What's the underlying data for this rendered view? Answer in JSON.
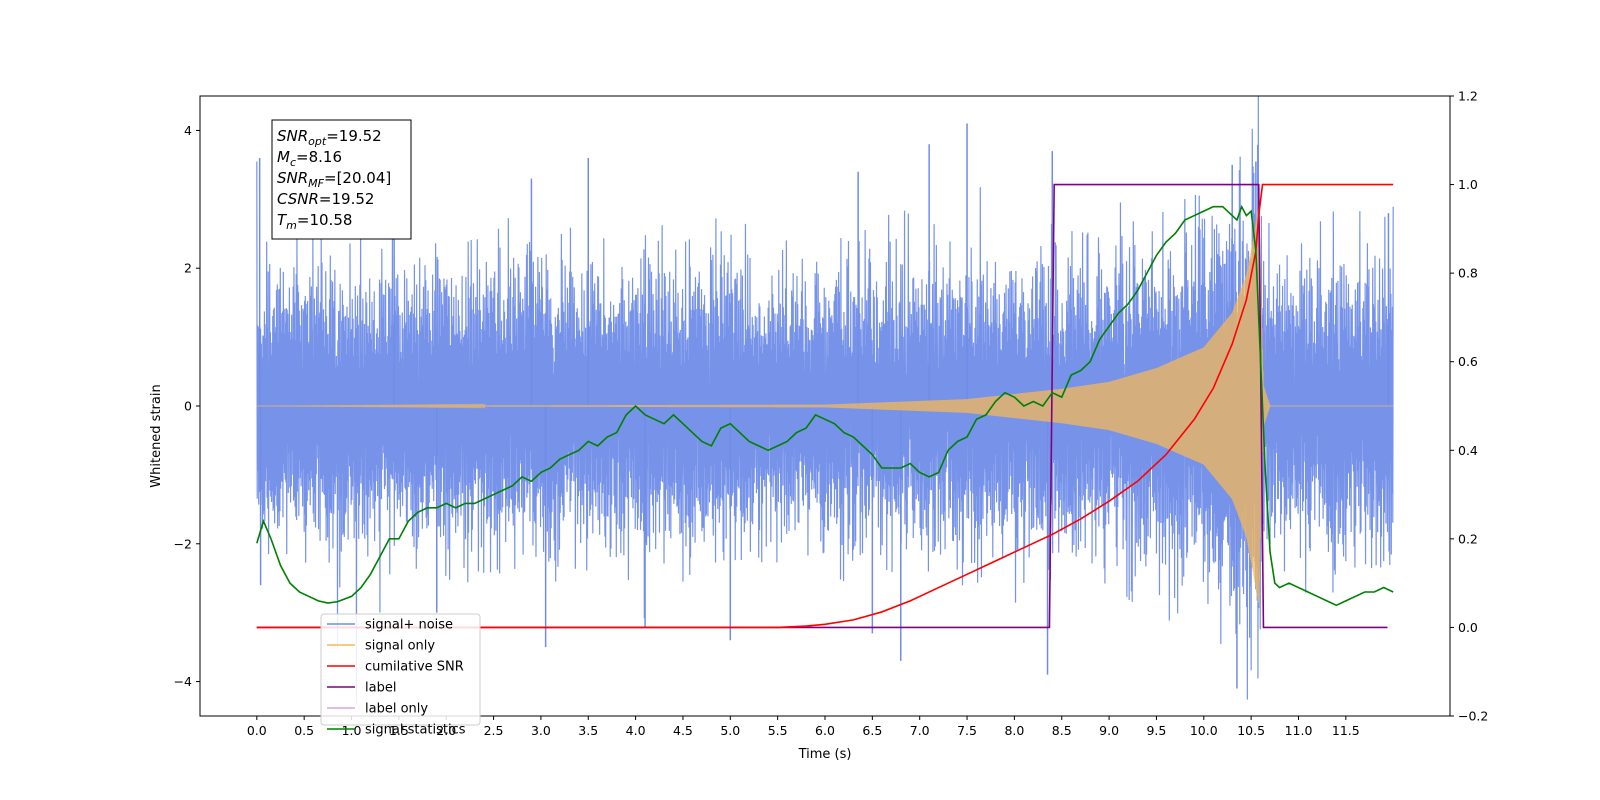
{
  "chart_data": {
    "type": "line",
    "xlabel": "Time (s)",
    "ylabel": "Whitened strain",
    "xlim": [
      -0.6,
      12.6
    ],
    "ylim": [
      -4.5,
      4.5
    ],
    "y2lim": [
      -0.2,
      1.2
    ],
    "x_ticks": [
      0.0,
      0.5,
      1.0,
      1.5,
      2.0,
      2.5,
      3.0,
      3.5,
      4.0,
      4.5,
      5.0,
      5.5,
      6.0,
      6.5,
      7.0,
      7.5,
      8.0,
      8.5,
      9.0,
      9.5,
      10.0,
      10.5,
      11.0,
      11.5
    ],
    "x_tick_labels": [
      "0.0",
      "0.5",
      "1.0",
      "1.5",
      "2.0",
      "2.5",
      "3.0",
      "3.5",
      "4.0",
      "4.5",
      "5.0",
      "5.5",
      "6.0",
      "6.5",
      "7.0",
      "7.5",
      "8.0",
      "8.5",
      "9.0",
      "9.5",
      "10.0",
      "10.5",
      "11.0",
      "11.5"
    ],
    "y_ticks": [
      -4,
      -2,
      0,
      2,
      4
    ],
    "y_tick_labels": [
      "−4",
      "−2",
      "0",
      "2",
      "4"
    ],
    "y2_ticks": [
      -0.2,
      0.0,
      0.2,
      0.4,
      0.6,
      0.8,
      1.0,
      1.2
    ],
    "y2_tick_labels": [
      "−0.2",
      "0.0",
      "0.2",
      "0.4",
      "0.6",
      "0.8",
      "1.0",
      "1.2"
    ],
    "annotation": {
      "lines": [
        {
          "sym": "SNR",
          "sub": "opt",
          "value": "=19.52"
        },
        {
          "sym": "M",
          "sub": "c",
          "value": "=8.16"
        },
        {
          "sym": "SNR",
          "sub": "MF",
          "value": "=[20.04]"
        },
        {
          "sym": "CSNR",
          "sub": "",
          "value": "=19.52"
        },
        {
          "sym": "T",
          "sub": "m",
          "value": "=10.58"
        }
      ]
    },
    "legend_position": "lower-left",
    "series": [
      {
        "name": "signal+ noise",
        "axis": "left",
        "color": "#6f8de8",
        "x_range": [
          0.0,
          12.0
        ],
        "envelope_max": [
          [
            0.0,
            1.5
          ],
          [
            8.0,
            1.5
          ],
          [
            9.0,
            1.6
          ],
          [
            10.0,
            1.9
          ],
          [
            10.5,
            2.6
          ],
          [
            10.58,
            3.0
          ],
          [
            10.65,
            1.5
          ],
          [
            12.0,
            1.5
          ]
        ],
        "peaks": [
          {
            "x": 0.03,
            "y": 3.6
          },
          {
            "x": 0.04,
            "y": -2.6
          },
          {
            "x": 1.45,
            "y": 3.4
          },
          {
            "x": 1.9,
            "y": -3.0
          },
          {
            "x": 2.9,
            "y": 3.3
          },
          {
            "x": 3.05,
            "y": -3.5
          },
          {
            "x": 3.5,
            "y": 3.6
          },
          {
            "x": 4.1,
            "y": -3.2
          },
          {
            "x": 5.0,
            "y": -3.4
          },
          {
            "x": 6.35,
            "y": 3.4
          },
          {
            "x": 6.5,
            "y": -3.3
          },
          {
            "x": 6.8,
            "y": -3.7
          },
          {
            "x": 7.1,
            "y": 3.8
          },
          {
            "x": 7.5,
            "y": 4.1
          },
          {
            "x": 8.35,
            "y": -3.9
          },
          {
            "x": 8.4,
            "y": 3.7
          },
          {
            "x": 10.3,
            "y": 3.5
          },
          {
            "x": 10.35,
            "y": -4.1
          },
          {
            "x": 10.55,
            "y": 3.55
          },
          {
            "x": 11.95,
            "y": 2.8
          }
        ]
      },
      {
        "name": "signal only",
        "axis": "left",
        "color": "#f5b75a",
        "x_range": [
          0.0,
          12.0
        ],
        "envelope": [
          [
            0.0,
            0.0
          ],
          [
            6.0,
            0.02
          ],
          [
            7.5,
            0.1
          ],
          [
            8.5,
            0.25
          ],
          [
            9.0,
            0.35
          ],
          [
            9.5,
            0.55
          ],
          [
            10.0,
            0.85
          ],
          [
            10.3,
            1.35
          ],
          [
            10.45,
            1.9
          ],
          [
            10.52,
            2.4
          ],
          [
            10.58,
            2.9
          ],
          [
            10.63,
            0.3
          ],
          [
            10.7,
            0.0
          ],
          [
            12.0,
            0.0
          ]
        ]
      },
      {
        "name": "cumilative SNR",
        "axis": "right",
        "color": "#ff0000",
        "x": [
          0.0,
          5.5,
          5.8,
          6.0,
          6.3,
          6.6,
          6.9,
          7.2,
          7.5,
          7.8,
          8.1,
          8.4,
          8.7,
          9.0,
          9.3,
          9.6,
          9.9,
          10.1,
          10.3,
          10.45,
          10.55,
          10.58,
          10.62,
          12.0
        ],
        "y": [
          0.0,
          0.0,
          0.003,
          0.007,
          0.017,
          0.035,
          0.06,
          0.09,
          0.12,
          0.15,
          0.18,
          0.21,
          0.245,
          0.285,
          0.33,
          0.39,
          0.47,
          0.54,
          0.64,
          0.74,
          0.85,
          0.93,
          1.0,
          1.0
        ]
      },
      {
        "name": "label",
        "axis": "right",
        "color": "#800080",
        "x": [
          0.0,
          8.37,
          8.42,
          10.58,
          10.63,
          11.94
        ],
        "y": [
          0.0,
          0.0,
          1.0,
          1.0,
          0.0,
          0.0
        ]
      },
      {
        "name": "label only",
        "axis": "right",
        "color": "#d9a6d9",
        "x": [],
        "y": []
      },
      {
        "name": "signal statistics",
        "axis": "right",
        "color": "#008000",
        "x": [
          0.0,
          0.07,
          0.15,
          0.25,
          0.35,
          0.45,
          0.55,
          0.65,
          0.75,
          0.85,
          1.0,
          1.1,
          1.2,
          1.3,
          1.4,
          1.5,
          1.6,
          1.7,
          1.8,
          1.9,
          2.0,
          2.1,
          2.2,
          2.3,
          2.4,
          2.5,
          2.6,
          2.7,
          2.8,
          2.9,
          3.0,
          3.1,
          3.2,
          3.3,
          3.4,
          3.5,
          3.6,
          3.7,
          3.8,
          3.9,
          4.0,
          4.1,
          4.2,
          4.3,
          4.4,
          4.5,
          4.6,
          4.7,
          4.8,
          4.9,
          5.0,
          5.1,
          5.2,
          5.3,
          5.4,
          5.5,
          5.6,
          5.7,
          5.8,
          5.9,
          6.0,
          6.1,
          6.2,
          6.3,
          6.4,
          6.5,
          6.6,
          6.7,
          6.8,
          6.9,
          7.0,
          7.1,
          7.2,
          7.3,
          7.4,
          7.5,
          7.6,
          7.7,
          7.8,
          7.9,
          8.0,
          8.1,
          8.2,
          8.3,
          8.4,
          8.5,
          8.6,
          8.7,
          8.8,
          8.9,
          9.0,
          9.1,
          9.2,
          9.3,
          9.4,
          9.5,
          9.6,
          9.7,
          9.8,
          9.9,
          10.0,
          10.1,
          10.2,
          10.3,
          10.35,
          10.4,
          10.45,
          10.5,
          10.55,
          10.6,
          10.65,
          10.7,
          10.75,
          10.8,
          10.9,
          11.0,
          11.1,
          11.2,
          11.3,
          11.4,
          11.5,
          11.6,
          11.7,
          11.8,
          11.9,
          12.0
        ],
        "y": [
          0.19,
          0.24,
          0.2,
          0.14,
          0.1,
          0.08,
          0.07,
          0.06,
          0.055,
          0.058,
          0.07,
          0.09,
          0.12,
          0.16,
          0.2,
          0.2,
          0.24,
          0.26,
          0.27,
          0.27,
          0.28,
          0.27,
          0.28,
          0.28,
          0.29,
          0.3,
          0.31,
          0.32,
          0.34,
          0.33,
          0.35,
          0.36,
          0.38,
          0.39,
          0.4,
          0.42,
          0.41,
          0.43,
          0.44,
          0.48,
          0.5,
          0.48,
          0.47,
          0.46,
          0.48,
          0.46,
          0.44,
          0.42,
          0.41,
          0.45,
          0.46,
          0.44,
          0.42,
          0.41,
          0.4,
          0.41,
          0.42,
          0.44,
          0.45,
          0.48,
          0.47,
          0.46,
          0.44,
          0.43,
          0.41,
          0.39,
          0.36,
          0.36,
          0.36,
          0.37,
          0.35,
          0.34,
          0.35,
          0.4,
          0.42,
          0.43,
          0.47,
          0.48,
          0.51,
          0.53,
          0.52,
          0.5,
          0.51,
          0.5,
          0.53,
          0.52,
          0.57,
          0.58,
          0.6,
          0.65,
          0.68,
          0.71,
          0.73,
          0.76,
          0.8,
          0.84,
          0.87,
          0.89,
          0.92,
          0.93,
          0.94,
          0.95,
          0.95,
          0.93,
          0.92,
          0.95,
          0.93,
          0.94,
          0.85,
          0.6,
          0.35,
          0.17,
          0.1,
          0.09,
          0.1,
          0.09,
          0.08,
          0.07,
          0.06,
          0.05,
          0.06,
          0.07,
          0.08,
          0.08,
          0.09,
          0.08
        ]
      }
    ]
  }
}
